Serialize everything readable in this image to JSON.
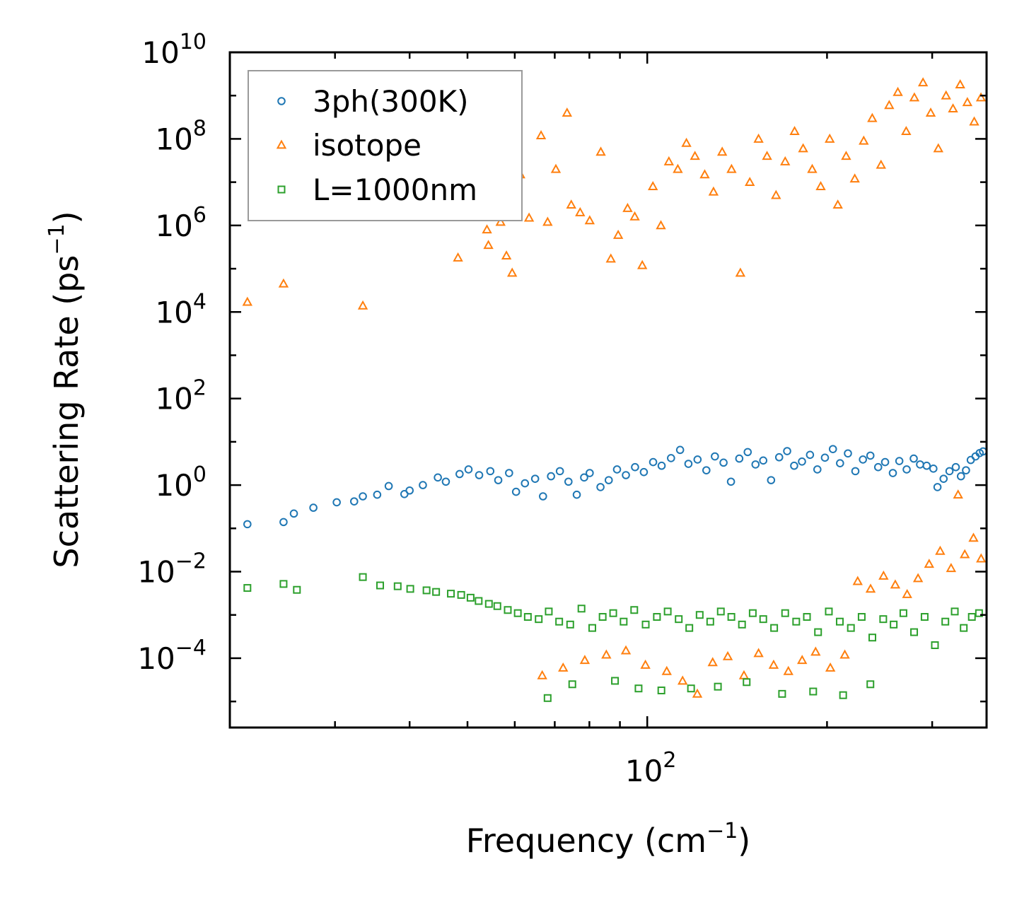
{
  "chart_data": {
    "type": "scatter",
    "title": "",
    "xlabel_main": "Frequency (cm",
    "xlabel_exp": "−1",
    "xlabel_tail": ")",
    "ylabel_main": "Scattering Rate (ps",
    "ylabel_exp": "−1",
    "ylabel_tail": ")",
    "xscale": "log",
    "yscale": "log",
    "xlim": [
      20,
      370
    ],
    "ylim": [
      2.5e-06,
      10000000000
    ],
    "legend_position": "top-left",
    "x_tick_labels": [
      {
        "value": 100,
        "base": "10",
        "exp": "2"
      }
    ],
    "y_tick_labels": [
      {
        "value": 0.0001,
        "base": "10",
        "exp": "−4"
      },
      {
        "value": 0.01,
        "base": "10",
        "exp": "−2"
      },
      {
        "value": 1,
        "base": "10",
        "exp": "0"
      },
      {
        "value": 100,
        "base": "10",
        "exp": "2"
      },
      {
        "value": 10000,
        "base": "10",
        "exp": "4"
      },
      {
        "value": 1000000,
        "base": "10",
        "exp": "6"
      },
      {
        "value": 100000000,
        "base": "10",
        "exp": "8"
      },
      {
        "value": 10000000000,
        "base": "10",
        "exp": "10"
      }
    ],
    "series": [
      {
        "name": "3ph(300K)",
        "marker": "circle",
        "color": "#1f77b4",
        "points": [
          [
            21.4,
            0.125
          ],
          [
            24.6,
            0.14
          ],
          [
            25.6,
            0.22
          ],
          [
            27.6,
            0.3
          ],
          [
            30.2,
            0.4
          ],
          [
            32.3,
            0.42
          ],
          [
            33.4,
            0.55
          ],
          [
            35.3,
            0.6
          ],
          [
            36.9,
            0.95
          ],
          [
            39.2,
            0.62
          ],
          [
            40.0,
            0.75
          ],
          [
            42.1,
            1.0
          ],
          [
            44.6,
            1.5
          ],
          [
            46.0,
            1.2
          ],
          [
            48.5,
            1.8
          ],
          [
            50.2,
            2.3
          ],
          [
            52.3,
            1.7
          ],
          [
            54.6,
            2.1
          ],
          [
            56.3,
            1.3
          ],
          [
            58.7,
            1.9
          ],
          [
            60.3,
            0.7
          ],
          [
            62.4,
            1.1
          ],
          [
            64.9,
            1.4
          ],
          [
            66.9,
            0.55
          ],
          [
            69.0,
            1.6
          ],
          [
            71.4,
            2.1
          ],
          [
            73.8,
            1.2
          ],
          [
            76.2,
            0.6
          ],
          [
            78.4,
            1.5
          ],
          [
            80.1,
            1.9
          ],
          [
            83.5,
            0.9
          ],
          [
            86.2,
            1.3
          ],
          [
            89.0,
            2.3
          ],
          [
            92.1,
            1.7
          ],
          [
            95.4,
            2.6
          ],
          [
            98.7,
            2.0
          ],
          [
            102.3,
            3.4
          ],
          [
            105.7,
            2.8
          ],
          [
            109.6,
            4.2
          ],
          [
            113.5,
            6.5
          ],
          [
            117.2,
            3.1
          ],
          [
            121.4,
            3.9
          ],
          [
            125.6,
            2.2
          ],
          [
            129.8,
            4.6
          ],
          [
            134.2,
            3.3
          ],
          [
            138.1,
            1.2
          ],
          [
            142.6,
            4.1
          ],
          [
            147.3,
            5.8
          ],
          [
            151.8,
            3.0
          ],
          [
            156.4,
            3.7
          ],
          [
            161.2,
            1.3
          ],
          [
            166.3,
            4.4
          ],
          [
            171.5,
            6.1
          ],
          [
            176.2,
            2.8
          ],
          [
            181.6,
            3.5
          ],
          [
            187.3,
            5.0
          ],
          [
            192.7,
            2.3
          ],
          [
            198.4,
            4.3
          ],
          [
            204.6,
            6.8
          ],
          [
            210.3,
            3.2
          ],
          [
            216.8,
            5.4
          ],
          [
            223.1,
            2.1
          ],
          [
            229.7,
            3.9
          ],
          [
            236.4,
            4.8
          ],
          [
            243.6,
            2.6
          ],
          [
            250.2,
            3.4
          ],
          [
            257.8,
            1.9
          ],
          [
            264.3,
            3.6
          ],
          [
            271.9,
            2.3
          ],
          [
            279.4,
            4.1
          ],
          [
            286.3,
            3.0
          ],
          [
            293.7,
            2.8
          ],
          [
            301.4,
            2.4
          ],
          [
            306.2,
            0.9
          ],
          [
            313.5,
            1.4
          ],
          [
            320.7,
            2.1
          ],
          [
            328.6,
            2.6
          ],
          [
            335.2,
            1.6
          ],
          [
            341.8,
            2.2
          ],
          [
            348.1,
            3.8
          ],
          [
            354.6,
            4.6
          ],
          [
            360.3,
            5.5
          ],
          [
            365.0,
            6.0
          ]
        ]
      },
      {
        "name": "isotope",
        "marker": "triangle",
        "color": "#ff7f0e",
        "points": [
          [
            21.4,
            17000
          ],
          [
            24.6,
            45000
          ],
          [
            33.4,
            14000
          ],
          [
            48.2,
            180000
          ],
          [
            53.9,
            800000
          ],
          [
            54.2,
            350000
          ],
          [
            56.8,
            1200000
          ],
          [
            58.1,
            200000
          ],
          [
            59.4,
            80000
          ],
          [
            60.5,
            3500000
          ],
          [
            61.3,
            15000000
          ],
          [
            63.4,
            1500000
          ],
          [
            66.4,
            120000000
          ],
          [
            68.1,
            1200000
          ],
          [
            70.3,
            20000000
          ],
          [
            73.4,
            400000000
          ],
          [
            74.6,
            3000000
          ],
          [
            77.2,
            2000000
          ],
          [
            80.1,
            1300000
          ],
          [
            83.6,
            50000000
          ],
          [
            86.9,
            170000
          ],
          [
            89.4,
            600000
          ],
          [
            92.7,
            2500000
          ],
          [
            95.3,
            1600000
          ],
          [
            98.1,
            120000
          ],
          [
            102.2,
            8000000
          ],
          [
            105.4,
            1000000
          ],
          [
            108.7,
            30000000
          ],
          [
            112.5,
            20000000
          ],
          [
            116.3,
            80000000
          ],
          [
            120.2,
            40000000
          ],
          [
            124.8,
            15000000
          ],
          [
            129.1,
            6000000
          ],
          [
            133.5,
            50000000
          ],
          [
            138.4,
            20000000
          ],
          [
            143.2,
            80000
          ],
          [
            148.5,
            10000000
          ],
          [
            153.6,
            100000000
          ],
          [
            158.7,
            40000000
          ],
          [
            164.3,
            5000000
          ],
          [
            170.2,
            30000000
          ],
          [
            176.5,
            150000000
          ],
          [
            182.4,
            60000000
          ],
          [
            188.9,
            20000000
          ],
          [
            195.2,
            8000000
          ],
          [
            202.1,
            100000000
          ],
          [
            208.5,
            3000000
          ],
          [
            215.3,
            40000000
          ],
          [
            222.6,
            12000000
          ],
          [
            230.4,
            90000000
          ],
          [
            238.1,
            300000000
          ],
          [
            246.3,
            25000000
          ],
          [
            254.2,
            600000000
          ],
          [
            262.8,
            1200000000
          ],
          [
            271.4,
            150000000
          ],
          [
            280.1,
            900000000
          ],
          [
            289.6,
            2000000000
          ],
          [
            298.3,
            400000000
          ],
          [
            307.2,
            60000000
          ],
          [
            316.5,
            1000000000
          ],
          [
            325.1,
            500000000
          ],
          [
            334.2,
            1800000000
          ],
          [
            343.6,
            700000000
          ],
          [
            352.8,
            250000000
          ],
          [
            362.1,
            900000000
          ],
          [
            66.7,
            4e-05
          ],
          [
            72.3,
            6e-05
          ],
          [
            78.6,
            9e-05
          ],
          [
            85.4,
            0.00012
          ],
          [
            92.1,
            0.00015
          ],
          [
            99.3,
            7e-05
          ],
          [
            107.8,
            5e-05
          ],
          [
            114.6,
            3e-05
          ],
          [
            121.3,
            1.5e-05
          ],
          [
            128.7,
            8e-05
          ],
          [
            136.4,
            0.00011
          ],
          [
            145.2,
            4e-05
          ],
          [
            153.6,
            0.00013
          ],
          [
            162.8,
            7e-05
          ],
          [
            172.3,
            5e-05
          ],
          [
            181.7,
            9e-05
          ],
          [
            191.4,
            0.00014
          ],
          [
            202.6,
            6e-05
          ],
          [
            214.2,
            0.00012
          ],
          [
            225.1,
            0.006
          ],
          [
            236.6,
            0.004
          ],
          [
            248.7,
            0.008
          ],
          [
            260.2,
            0.005
          ],
          [
            272.4,
            0.003
          ],
          [
            284.1,
            0.007
          ],
          [
            296.5,
            0.015
          ],
          [
            309.4,
            0.03
          ],
          [
            322.7,
            0.012
          ],
          [
            331.5,
            0.6
          ],
          [
            340.2,
            0.025
          ],
          [
            351.8,
            0.06
          ],
          [
            362.3,
            0.02
          ]
        ]
      },
      {
        "name": "L=1000nm",
        "marker": "square",
        "color": "#2ca02c",
        "points": [
          [
            21.4,
            0.0042
          ],
          [
            24.6,
            0.0052
          ],
          [
            25.9,
            0.0038
          ],
          [
            33.4,
            0.0075
          ],
          [
            35.7,
            0.0048
          ],
          [
            38.2,
            0.0046
          ],
          [
            40.1,
            0.004
          ],
          [
            42.7,
            0.0037
          ],
          [
            44.3,
            0.0034
          ],
          [
            46.9,
            0.0031
          ],
          [
            48.8,
            0.0029
          ],
          [
            50.6,
            0.0025
          ],
          [
            52.2,
            0.0021
          ],
          [
            54.3,
            0.0018
          ],
          [
            56.1,
            0.0016
          ],
          [
            58.4,
            0.0013
          ],
          [
            60.7,
            0.0011
          ],
          [
            63.1,
            0.0009
          ],
          [
            65.8,
            0.0008
          ],
          [
            68.4,
            0.0012
          ],
          [
            71.2,
            0.0007
          ],
          [
            74.3,
            0.0006
          ],
          [
            77.6,
            0.0014
          ],
          [
            80.9,
            0.0005
          ],
          [
            84.2,
            0.0009
          ],
          [
            87.7,
            0.0011
          ],
          [
            91.3,
            0.0007
          ],
          [
            95.1,
            0.0013
          ],
          [
            99.4,
            0.0006
          ],
          [
            103.8,
            0.0009
          ],
          [
            108.2,
            0.0012
          ],
          [
            112.9,
            0.0008
          ],
          [
            117.6,
            0.0005
          ],
          [
            122.4,
            0.001
          ],
          [
            127.5,
            0.0007
          ],
          [
            132.8,
            0.0012
          ],
          [
            138.3,
            0.0009
          ],
          [
            144.1,
            0.0006
          ],
          [
            150.2,
            0.0011
          ],
          [
            156.4,
            0.0008
          ],
          [
            163.1,
            0.0005
          ],
          [
            170.2,
            0.0011
          ],
          [
            177.6,
            0.0007
          ],
          [
            185.1,
            0.0009
          ],
          [
            193.2,
            0.0004
          ],
          [
            201.4,
            0.0012
          ],
          [
            210.1,
            0.0007
          ],
          [
            219.3,
            0.0005
          ],
          [
            228.6,
            0.0009
          ],
          [
            238.2,
            0.0003
          ],
          [
            248.4,
            0.0008
          ],
          [
            258.6,
            0.0006
          ],
          [
            268.5,
            0.0011
          ],
          [
            279.8,
            0.0004
          ],
          [
            291.4,
            0.0009
          ],
          [
            303.2,
            0.0002
          ],
          [
            315.6,
            0.0007
          ],
          [
            327.3,
            0.0012
          ],
          [
            338.8,
            0.0005
          ],
          [
            349.6,
            0.0009
          ],
          [
            359.4,
            0.0011
          ],
          [
            68.1,
            1.2e-05
          ],
          [
            74.9,
            2.5e-05
          ],
          [
            88.3,
            3e-05
          ],
          [
            96.7,
            2e-05
          ],
          [
            105.6,
            1.8e-05
          ],
          [
            118.4,
            2e-05
          ],
          [
            131.3,
            2.2e-05
          ],
          [
            146.7,
            2.8e-05
          ],
          [
            168.2,
            1.5e-05
          ],
          [
            189.6,
            1.7e-05
          ],
          [
            212.8,
            1.4e-05
          ],
          [
            236.4,
            2.5e-05
          ]
        ]
      }
    ]
  }
}
